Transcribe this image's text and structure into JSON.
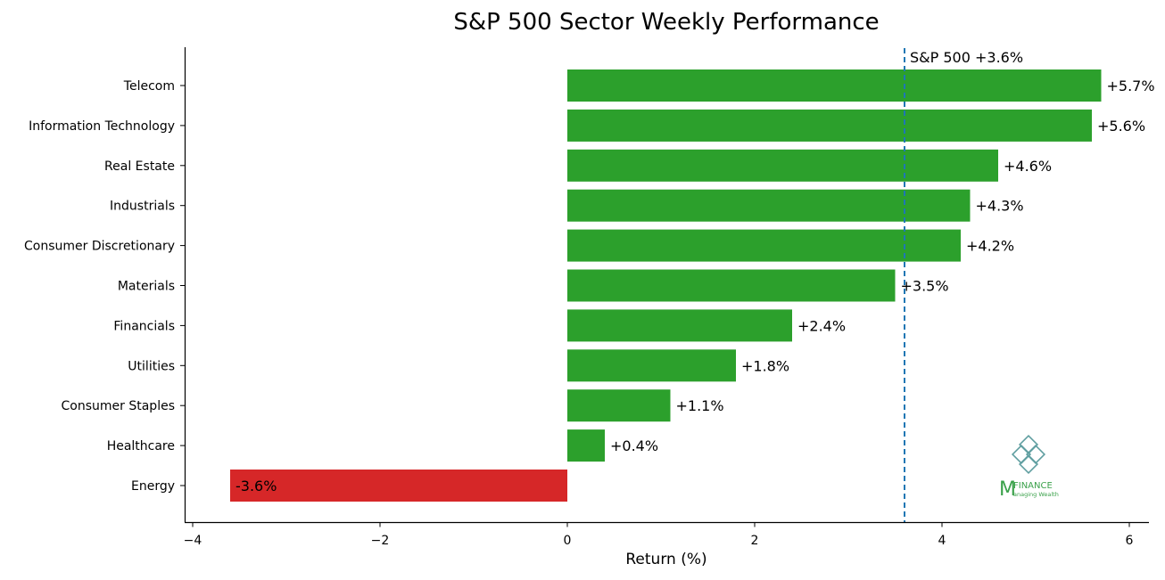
{
  "chart_data": {
    "type": "bar",
    "orientation": "horizontal",
    "title": "S&P 500 Sector Weekly Performance",
    "xlabel": "Return (%)",
    "ylabel": "",
    "xlim": [
      -4.1,
      6.2
    ],
    "xticks": [
      -4,
      -2,
      0,
      2,
      4,
      6
    ],
    "xtick_labels": [
      "−4",
      "−2",
      "0",
      "2",
      "4",
      "6"
    ],
    "categories": [
      "Telecom",
      "Information Technology",
      "Real Estate",
      "Industrials",
      "Consumer Discretionary",
      "Materials",
      "Financials",
      "Utilities",
      "Consumer Staples",
      "Healthcare",
      "Energy"
    ],
    "values": [
      5.7,
      5.6,
      4.6,
      4.3,
      4.2,
      3.5,
      2.4,
      1.8,
      1.1,
      0.4,
      -3.6
    ],
    "data_labels": [
      "+5.7%",
      "+5.6%",
      "+4.6%",
      "+4.3%",
      "+4.2%",
      "+3.5%",
      "+2.4%",
      "+1.8%",
      "+1.1%",
      "+0.4%",
      "-3.6%"
    ],
    "reference_line": {
      "value": 3.6,
      "label": "S&P 500 +3.6%",
      "style": "dashed",
      "color": "#1f77b4"
    },
    "colors": {
      "positive": "#2ca02c",
      "negative": "#d62728"
    },
    "grid": false,
    "legend": "none"
  },
  "logo": {
    "brand_letter": "M",
    "brand_name": "FINANCE",
    "tagline": "anaging Wealth",
    "color_primary": "#3aa14a",
    "color_knot": "#5f9ea0"
  }
}
